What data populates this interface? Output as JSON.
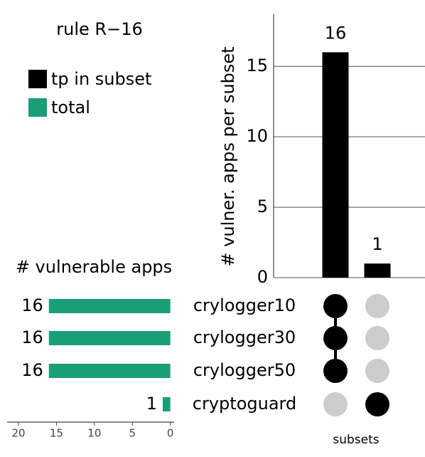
{
  "chart_data": {
    "type": "upset",
    "title": "rule R−16",
    "intersections": {
      "name": "tp in subset",
      "color": "#000000",
      "values": [
        16,
        1
      ],
      "ylabel": "# vulner. apps per subset",
      "ylim": [
        0,
        18.7
      ],
      "yticks": [
        0,
        5,
        10,
        15
      ],
      "grid": true
    },
    "sets": {
      "name": "total",
      "color": "#1a9e77",
      "categories": [
        "crylogger10",
        "crylogger30",
        "crylogger50",
        "cryptoguard"
      ],
      "values": [
        16,
        16,
        16,
        1
      ],
      "xlabel": "# vulnerable apps",
      "xlim": [
        21.5,
        -0.5
      ],
      "xticks": [
        20,
        15,
        10,
        5,
        0
      ]
    },
    "matrix": [
      [
        1,
        0
      ],
      [
        1,
        0
      ],
      [
        1,
        0
      ],
      [
        0,
        1
      ]
    ],
    "matrix_label": "subsets",
    "member_color": "#000000",
    "nonmember_color": "#cccccc"
  }
}
